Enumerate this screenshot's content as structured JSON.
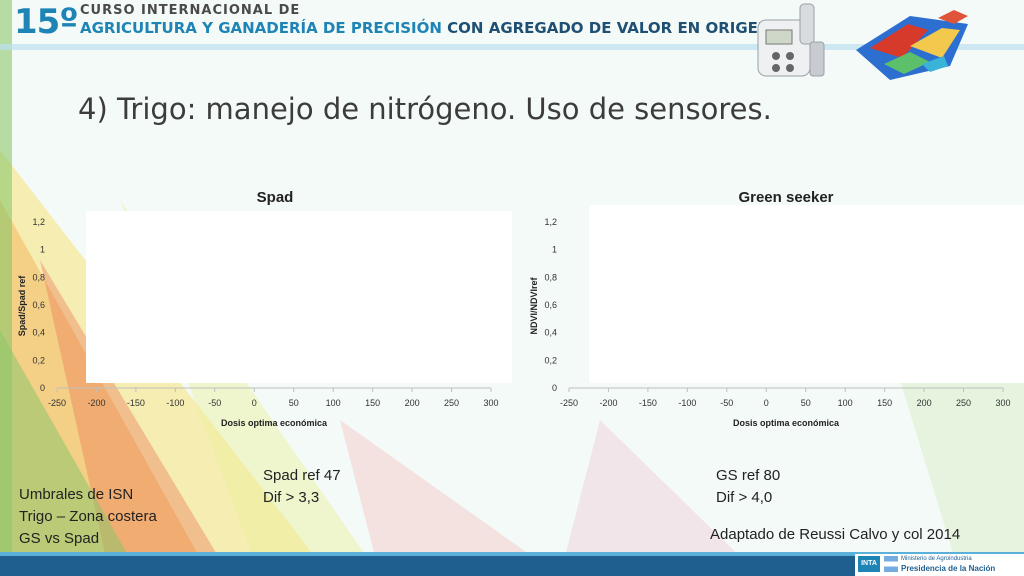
{
  "header": {
    "course_number": "15º",
    "course_line1": "CURSO INTERNACIONAL DE",
    "course_line2a": "AGRICULTURA Y GANADERÍA DE PRECISIÓN",
    "course_line2b": "CON AGREGADO DE VALOR EN ORIGEN"
  },
  "slide_title": "4) Trigo: manejo de nitrógeno. Uso de sensores.",
  "chart_data": [
    {
      "type": "scatter",
      "title": "Spad",
      "xlabel": "Dosis optima económica",
      "ylabel": "Spad/Spad ref",
      "xlim": [
        -250,
        300
      ],
      "ylim": [
        0,
        1.2
      ],
      "x_ticks": [
        "-250",
        "-200",
        "-150",
        "-100",
        "-50",
        "0",
        "50",
        "100",
        "150",
        "200",
        "250",
        "300"
      ],
      "y_ticks": [
        "0",
        "0,2",
        "0,4",
        "0,6",
        "0,8",
        "1",
        "1,2"
      ],
      "series": []
    },
    {
      "type": "scatter",
      "title": "Green seeker",
      "xlabel": "Dosis optima económica",
      "ylabel": "NDVI/NDVIref",
      "xlim": [
        -250,
        300
      ],
      "ylim": [
        0,
        1.2
      ],
      "x_ticks": [
        "-250",
        "-200",
        "-150",
        "-100",
        "-50",
        "0",
        "50",
        "100",
        "150",
        "200",
        "250",
        "300"
      ],
      "y_ticks": [
        "0",
        "0,2",
        "0,4",
        "0,6",
        "0,8",
        "1",
        "1,2"
      ],
      "series": []
    }
  ],
  "spad_note": {
    "line1": "Spad ref 47",
    "line2": "Dif > 3,3"
  },
  "gs_note": {
    "line1": "GS ref 80",
    "line2": "Dif > 4,0"
  },
  "left_note": {
    "line1": "Umbrales de ISN",
    "line2": "Trigo – Zona costera",
    "line3": "GS vs Spad"
  },
  "source": "Adaptado de Reussi Calvo y col 2014",
  "footer": {
    "inta": "INTA",
    "ministry_line1": "Ministerio de Agroindustria",
    "ministry_line2": "Presidencia de la Nación"
  }
}
